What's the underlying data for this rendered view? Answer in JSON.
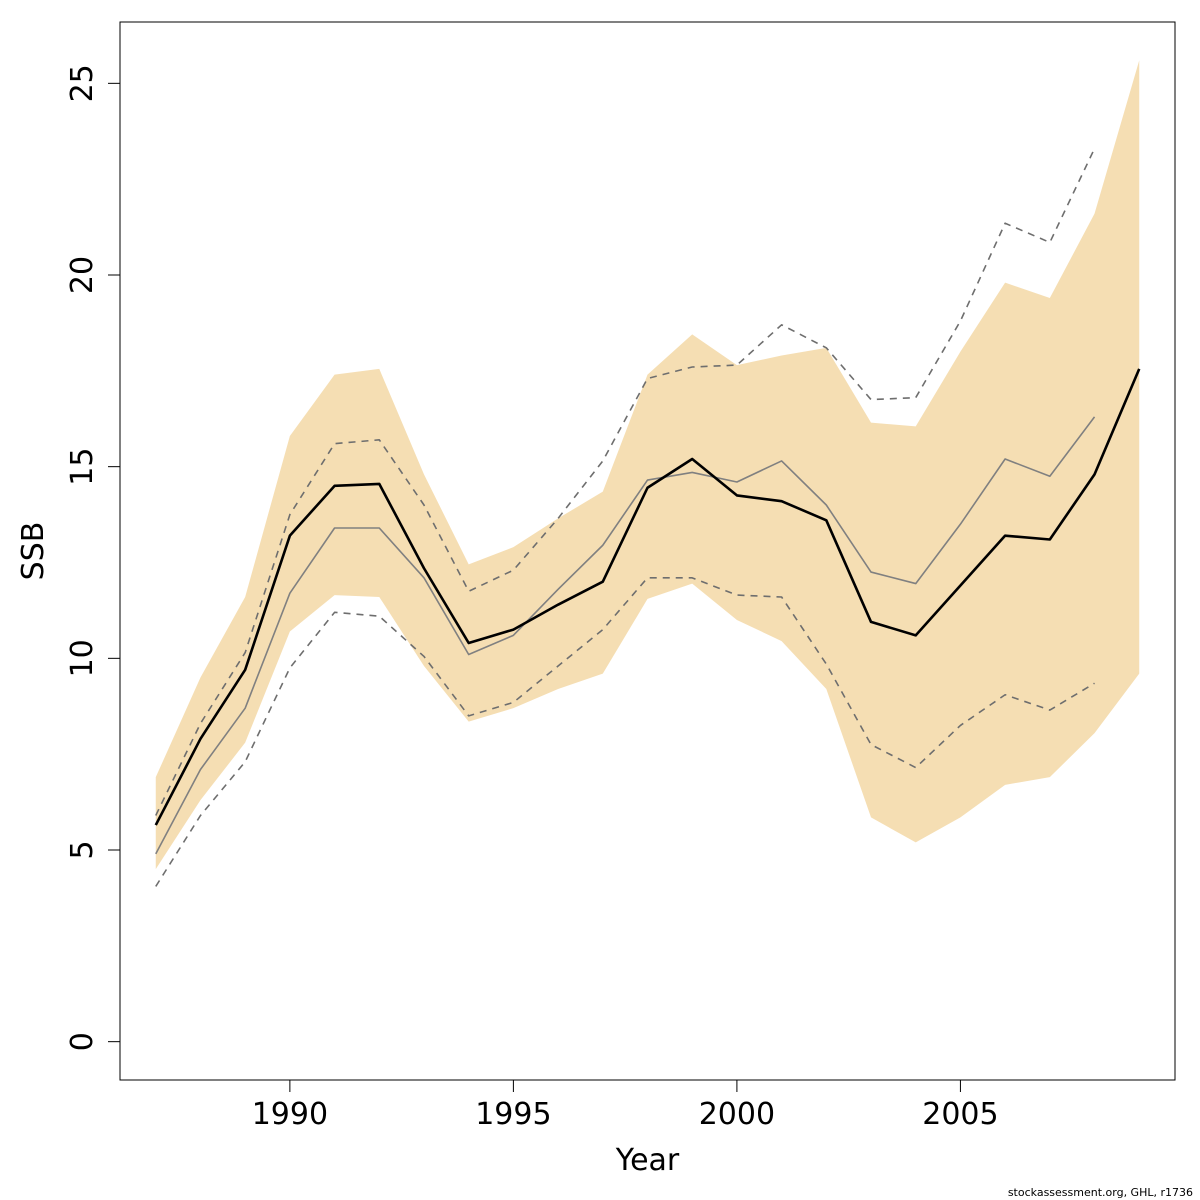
{
  "chart_data": {
    "type": "line",
    "xlabel": "Year",
    "ylabel": "SSB",
    "xlim": [
      1986.2,
      2009.8
    ],
    "ylim": [
      -1.0,
      26.6
    ],
    "xticks": [
      1990,
      1995,
      2000,
      2005
    ],
    "yticks": [
      0,
      5,
      10,
      15,
      20,
      25
    ],
    "footnote": "stockassessment.org, GHL, r1736",
    "colors": {
      "band": "#f5deb3",
      "main_line": "#000000",
      "secondary_line": "#808080",
      "dashed_line": "#6e6e6e"
    },
    "band": {
      "x": [
        1987,
        1988,
        1989,
        1990,
        1991,
        1992,
        1993,
        1994,
        1995,
        1996,
        1997,
        1998,
        1999,
        2000,
        2001,
        2002,
        2003,
        2004,
        2005,
        2006,
        2007,
        2008,
        2009
      ],
      "upper": [
        6.9,
        9.5,
        11.6,
        15.8,
        17.4,
        17.55,
        14.8,
        12.45,
        12.9,
        13.65,
        14.35,
        17.4,
        18.45,
        17.65,
        17.9,
        18.1,
        16.15,
        16.05,
        18.0,
        19.8,
        19.4,
        21.6,
        25.6
      ],
      "lower": [
        4.5,
        6.3,
        7.8,
        10.7,
        11.65,
        11.6,
        9.8,
        8.35,
        8.7,
        9.2,
        9.6,
        11.55,
        11.95,
        11.0,
        10.45,
        9.2,
        5.85,
        5.2,
        5.85,
        6.7,
        6.9,
        8.05,
        9.6
      ]
    },
    "series": [
      {
        "style": "solid-thick",
        "x": [
          1987,
          1988,
          1989,
          1990,
          1991,
          1992,
          1993,
          1994,
          1995,
          1996,
          1997,
          1998,
          1999,
          2000,
          2001,
          2002,
          2003,
          2004,
          2005,
          2006,
          2007,
          2008,
          2009
        ],
        "values": [
          5.65,
          7.9,
          9.7,
          13.2,
          14.5,
          14.55,
          12.35,
          10.4,
          10.75,
          11.4,
          12.0,
          14.45,
          15.2,
          14.25,
          14.1,
          13.6,
          10.95,
          10.6,
          11.9,
          13.2,
          13.1,
          14.8,
          17.55
        ]
      },
      {
        "style": "solid-thin",
        "x": [
          1987,
          1988,
          1989,
          1990,
          1991,
          1992,
          1993,
          1994,
          1995,
          1996,
          1997,
          1998,
          1999,
          2000,
          2001,
          2002,
          2003,
          2004,
          2005,
          2006,
          2007,
          2008
        ],
        "values": [
          4.9,
          7.1,
          8.7,
          11.7,
          13.4,
          13.4,
          12.1,
          10.1,
          10.6,
          11.8,
          12.95,
          14.65,
          14.85,
          14.6,
          15.15,
          14.0,
          12.25,
          11.95,
          13.5,
          15.2,
          14.75,
          16.3
        ]
      },
      {
        "style": "dashed-upper",
        "x": [
          1987,
          1988,
          1989,
          1990,
          1991,
          1992,
          1993,
          1994,
          1995,
          1996,
          1997,
          1998,
          1999,
          2000,
          2001,
          2002,
          2003,
          2004,
          2005,
          2006,
          2007,
          2008
        ],
        "values": [
          5.9,
          8.3,
          10.15,
          13.75,
          15.6,
          15.7,
          14.0,
          11.75,
          12.3,
          13.65,
          15.15,
          17.3,
          17.6,
          17.65,
          18.7,
          18.1,
          16.75,
          16.8,
          18.8,
          21.35,
          20.85,
          23.3
        ]
      },
      {
        "style": "dashed-lower",
        "x": [
          1987,
          1988,
          1989,
          1990,
          1991,
          1992,
          1993,
          1994,
          1995,
          1996,
          1997,
          1998,
          1999,
          2000,
          2001,
          2002,
          2003,
          2004,
          2005,
          2006,
          2007,
          2008
        ],
        "values": [
          4.05,
          5.9,
          7.3,
          9.75,
          11.2,
          11.1,
          10.05,
          8.5,
          8.85,
          9.8,
          10.75,
          12.1,
          12.1,
          11.65,
          11.6,
          9.85,
          7.75,
          7.15,
          8.25,
          9.05,
          8.65,
          9.35
        ]
      }
    ]
  }
}
